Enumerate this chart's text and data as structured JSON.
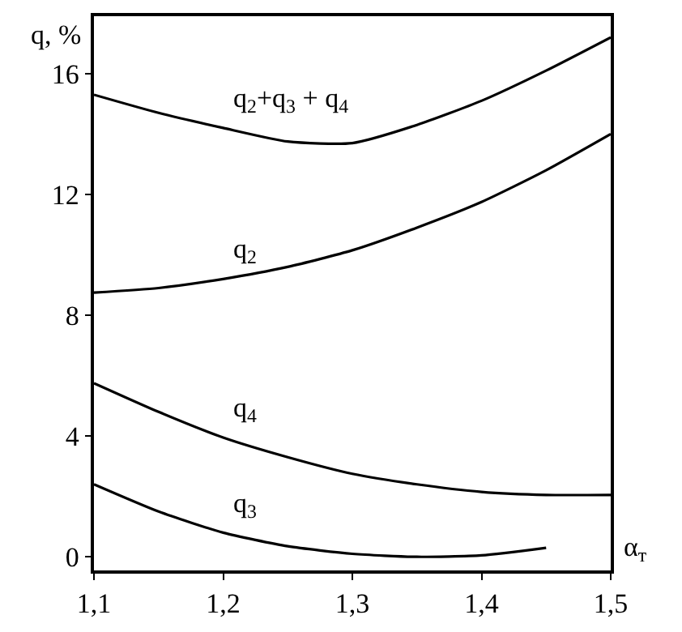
{
  "chart_data": {
    "type": "line",
    "xlabel": "α$_{т}$",
    "ylabel": "q, %",
    "x": [
      1.1,
      1.15,
      1.2,
      1.25,
      1.3,
      1.35,
      1.4,
      1.45,
      1.5
    ],
    "series": [
      {
        "name": "q$_{2}$+q$_{3}$ + q$_{4}$",
        "color": "#000000",
        "values": [
          15.3,
          14.7,
          14.2,
          13.75,
          13.7,
          14.3,
          15.1,
          16.1,
          17.2
        ]
      },
      {
        "name": "q$_{2}$",
        "color": "#000000",
        "values": [
          8.75,
          8.9,
          9.2,
          9.6,
          10.15,
          10.9,
          11.75,
          12.8,
          14.0
        ]
      },
      {
        "name": "q$_{4}$",
        "color": "#000000",
        "values": [
          5.75,
          4.8,
          3.95,
          3.3,
          2.75,
          2.4,
          2.15,
          2.05,
          2.05
        ]
      },
      {
        "name": "q$_{3}$",
        "color": "#000000",
        "x": [
          1.1,
          1.15,
          1.2,
          1.25,
          1.3,
          1.35,
          1.4,
          1.45
        ],
        "values": [
          2.4,
          1.5,
          0.8,
          0.35,
          0.1,
          0.0,
          0.05,
          0.3
        ]
      }
    ],
    "xlim": [
      1.1,
      1.5
    ],
    "ylim": [
      -0.45,
      17.9
    ],
    "xticks": [
      {
        "value": 1.1,
        "label": "1,1"
      },
      {
        "value": 1.2,
        "label": "1,2"
      },
      {
        "value": 1.3,
        "label": "1,3"
      },
      {
        "value": 1.4,
        "label": "1,4"
      },
      {
        "value": 1.5,
        "label": "1,5"
      }
    ],
    "yticks": [
      0,
      4,
      8,
      12,
      16
    ],
    "legend": false,
    "marker": "none",
    "line_style": "solid"
  }
}
